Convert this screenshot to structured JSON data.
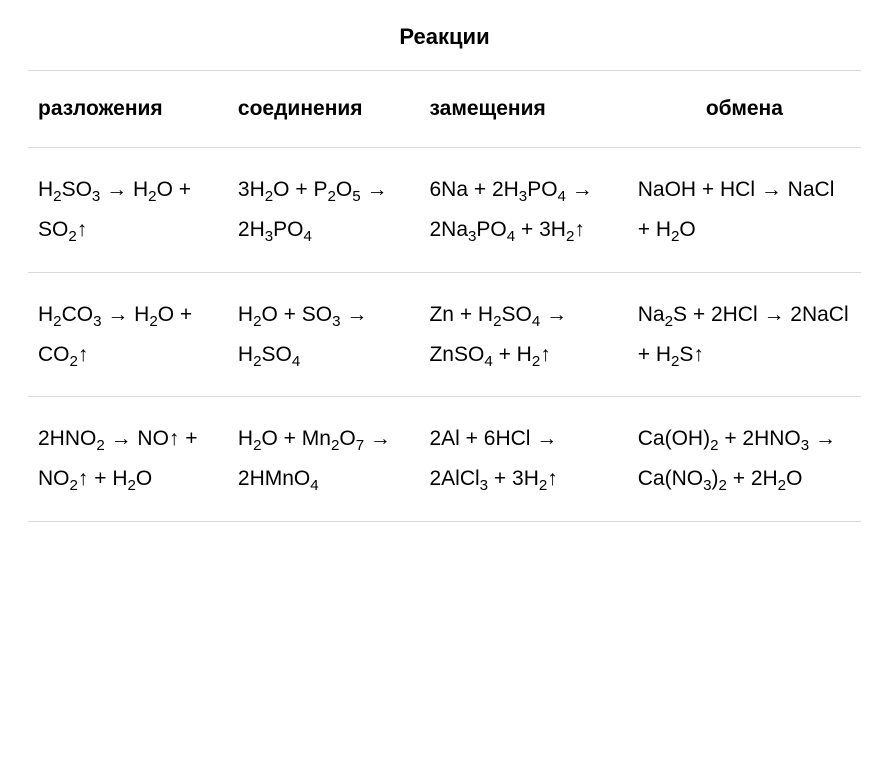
{
  "title": "Реакции",
  "columns": [
    {
      "label": "разложения",
      "align": "left"
    },
    {
      "label": "соединения",
      "align": "left"
    },
    {
      "label": "замещения",
      "align": "left"
    },
    {
      "label": "обмена",
      "align": "center"
    }
  ],
  "rows": [
    [
      "H_{2}SO_{3} → H_{2}O + SO_{2}↑",
      "3H_{2}O + P_{2}O_{5} → 2H_{3}PO_{4}",
      "6Na + 2H_{3}PO_{4} → 2Na_{3}PO_{4} + 3H_{2}↑",
      "NaOH + HCl → NaCl + H_{2}O"
    ],
    [
      "H_{2}CO_{3} → H_{2}O + CO_{2}↑",
      "H_{2}O + SO_{3} → H_{2}SO_{4}",
      "Zn + H_{2}SO_{4} → ZnSO_{4} + H_{2}↑",
      "Na_{2}S + 2HCl → 2NaCl + H_{2}S↑"
    ],
    [
      "2HNO_{2} → NO↑ + NO_{2}↑ + H_{2}O",
      "H_{2}O + Mn_{2}O_{7} → 2HMnO_{4}",
      "2Al + 6HCl → 2AlCl_{3} + 3H_{2}↑",
      "Ca(OH)_{2} + 2HNO_{3} → Ca(NO_{3})_{2} + 2H_{2}O"
    ]
  ],
  "style": {
    "background_color": "#ffffff",
    "text_color": "#000000",
    "divider_color": "#d9d9d9",
    "title_fontsize": 22,
    "header_fontsize": 21,
    "cell_fontsize": 21,
    "font_family": "Arial",
    "col_widths_pct": [
      24,
      23,
      25,
      28
    ]
  }
}
